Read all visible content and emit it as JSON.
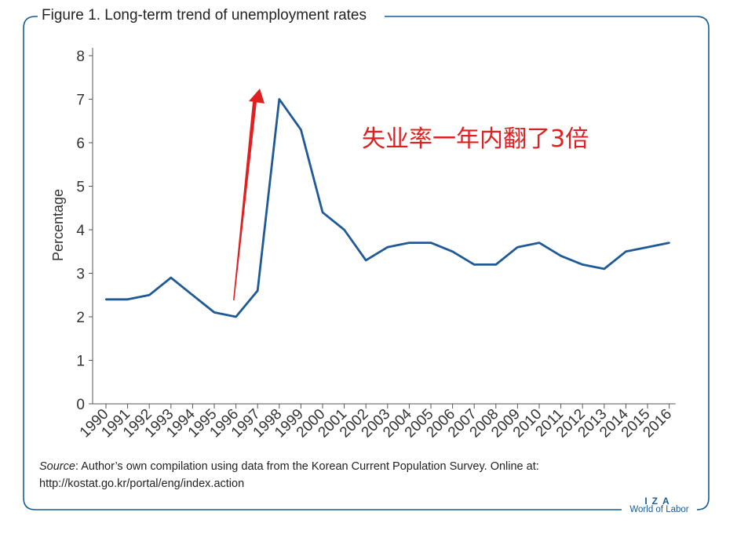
{
  "figure": {
    "title": "Figure 1. Long-term trend of unemployment rates",
    "source_label": "Source",
    "source_text": ": Author’s own compilation using data from the Korean Current Population Survey. Online at: http://kostat.go.kr/portal/eng/index.action",
    "annotation": "失业率一年内翻了3倍",
    "brand_top": "IZA",
    "brand_bottom": "World of Labor"
  },
  "colors": {
    "frame": "#1a5b96",
    "line": "#1f5a96",
    "arrow": "#e02020"
  },
  "chart_data": {
    "type": "line",
    "title": "Figure 1. Long-term trend of unemployment rates",
    "xlabel": "",
    "ylabel": "Percentage",
    "x": [
      "1990",
      "1991",
      "1992",
      "1993",
      "1994",
      "1995",
      "1996",
      "1997",
      "1998",
      "1999",
      "2000",
      "2001",
      "2002",
      "2003",
      "2004",
      "2005",
      "2006",
      "2007",
      "2008",
      "2009",
      "2010",
      "2011",
      "2012",
      "2013",
      "2014",
      "2015",
      "2016"
    ],
    "series": [
      {
        "values": [
          2.4,
          2.4,
          2.5,
          2.9,
          2.5,
          2.1,
          2.0,
          2.6,
          7.0,
          6.3,
          4.4,
          4.0,
          3.3,
          3.6,
          3.7,
          3.7,
          3.5,
          3.2,
          3.2,
          3.6,
          3.7,
          3.4,
          3.2,
          3.1,
          3.5,
          3.6,
          3.7
        ]
      }
    ],
    "yticks": [
      "0",
      "1",
      "2",
      "3",
      "4",
      "5",
      "6",
      "7",
      "8"
    ],
    "ylim": [
      0,
      8
    ],
    "grid": false,
    "legend": "none"
  }
}
